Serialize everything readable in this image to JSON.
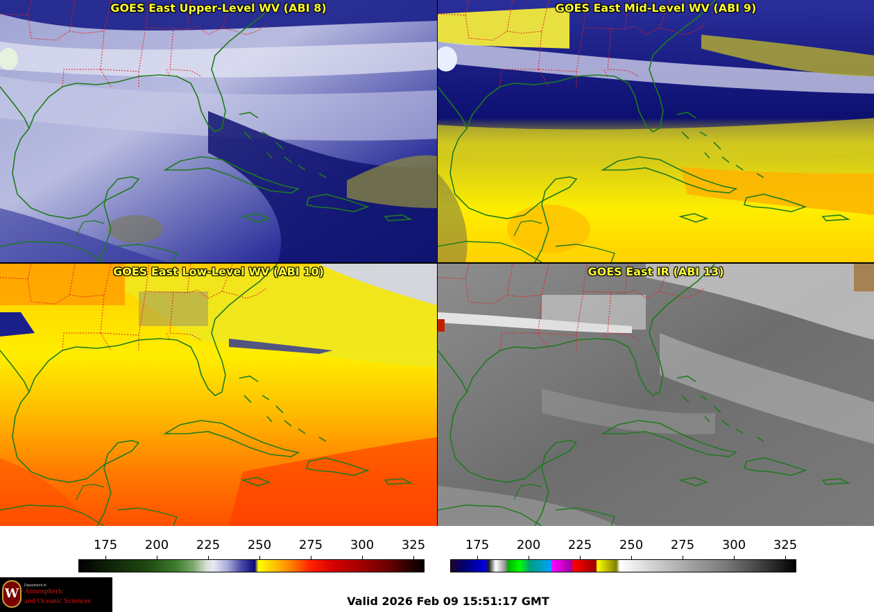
{
  "panels": [
    {
      "title": "GOES East Upper-Level WV (ABI 8)",
      "product": "upper-level water vapor"
    },
    {
      "title": "GOES East Mid-Level WV (ABI 9)",
      "product": "mid-level water vapor"
    },
    {
      "title": "GOES East Low-Level WV (ABI 10)",
      "product": "low-level water vapor"
    },
    {
      "title": "GOES East IR (ABI 13)",
      "product": "infrared"
    }
  ],
  "colorbars": {
    "wv": {
      "ticks": [
        "175",
        "200",
        "225",
        "250",
        "275",
        "300",
        "325"
      ],
      "range": [
        162,
        330
      ],
      "colormap": "black-green-white-blue-yellow-orange-red-black"
    },
    "ir": {
      "ticks": [
        "175",
        "200",
        "225",
        "250",
        "275",
        "300",
        "325"
      ],
      "range": [
        162,
        330
      ],
      "colormap": "enhanced IR: blue-green-magenta-red-yellow then grayscale"
    }
  },
  "logo": {
    "dept": "Department of",
    "line1": "Atmospheric",
    "line2": "and Oceanic Sciences",
    "seal_letter": "W",
    "seal_color": "#7a0000"
  },
  "valid_time": "Valid 2026 Feb 09 15:51:17 GMT",
  "colors": {
    "title_text": "#ffff33",
    "coastline": "#1e7a1e",
    "state_borders": "#e02020"
  }
}
